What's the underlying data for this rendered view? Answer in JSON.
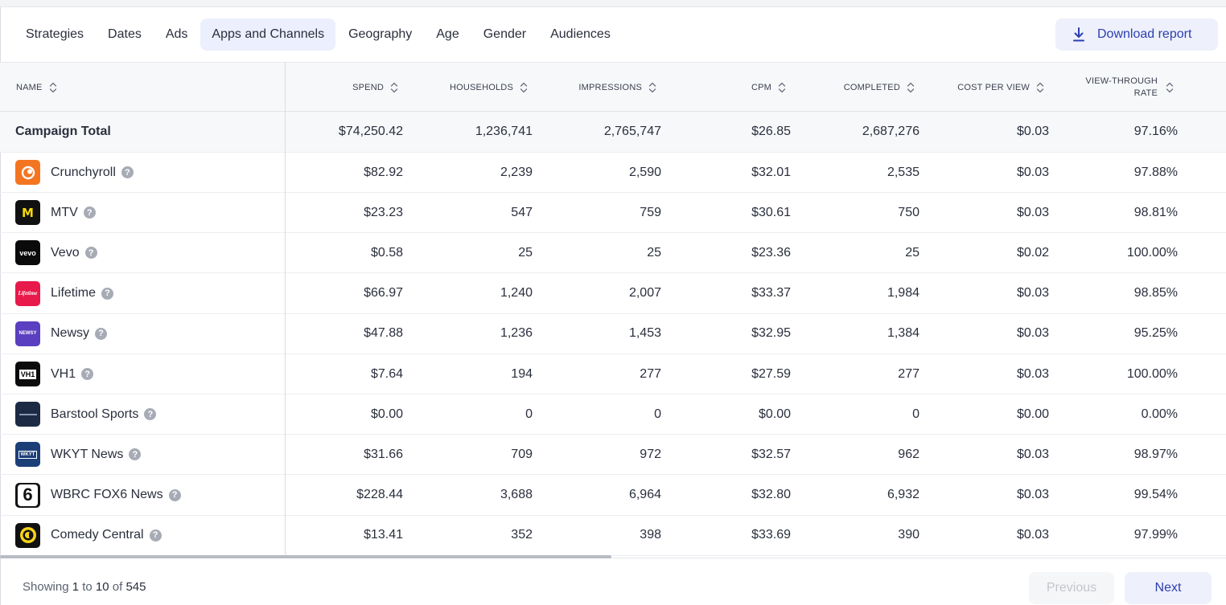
{
  "tabs": [
    "Strategies",
    "Dates",
    "Ads",
    "Apps and Channels",
    "Geography",
    "Age",
    "Gender",
    "Audiences"
  ],
  "active_tab": "Apps and Channels",
  "download_label": "Download report",
  "columns": {
    "name": "NAME",
    "spend": "SPEND",
    "households": "HOUSEHOLDS",
    "impressions": "IMPRESSIONS",
    "cpm": "CPM",
    "completed": "COMPLETED",
    "cost_per_view": "COST PER VIEW",
    "vtr_line1": "VIEW-THROUGH",
    "vtr_line2": "RATE"
  },
  "total": {
    "name": "Campaign Total",
    "spend": "$74,250.42",
    "households": "1,236,741",
    "impressions": "2,765,747",
    "cpm": "$26.85",
    "completed": "2,687,276",
    "cost_per_view": "$0.03",
    "vtr": "97.16%"
  },
  "rows": [
    {
      "name": "Crunchyroll",
      "logo": "crunchyroll-logo",
      "color": "#f47521",
      "spend": "$82.92",
      "households": "2,239",
      "impressions": "2,590",
      "cpm": "$32.01",
      "completed": "2,535",
      "cost_per_view": "$0.03",
      "vtr": "97.88%"
    },
    {
      "name": "MTV",
      "logo": "mtv-logo",
      "color": "#111111",
      "spend": "$23.23",
      "households": "547",
      "impressions": "759",
      "cpm": "$30.61",
      "completed": "750",
      "cost_per_view": "$0.03",
      "vtr": "98.81%"
    },
    {
      "name": "Vevo",
      "logo": "vevo-logo",
      "color": "#0a0a0a",
      "spend": "$0.58",
      "households": "25",
      "impressions": "25",
      "cpm": "$23.36",
      "completed": "25",
      "cost_per_view": "$0.02",
      "vtr": "100.00%"
    },
    {
      "name": "Lifetime",
      "logo": "lifetime-logo",
      "color": "#e8194b",
      "spend": "$66.97",
      "households": "1,240",
      "impressions": "2,007",
      "cpm": "$33.37",
      "completed": "1,984",
      "cost_per_view": "$0.03",
      "vtr": "98.85%"
    },
    {
      "name": "Newsy",
      "logo": "newsy-logo",
      "color": "#5a3fc0",
      "spend": "$47.88",
      "households": "1,236",
      "impressions": "1,453",
      "cpm": "$32.95",
      "completed": "1,384",
      "cost_per_view": "$0.03",
      "vtr": "95.25%"
    },
    {
      "name": "VH1",
      "logo": "vh1-logo",
      "color": "#0b0b0b",
      "spend": "$7.64",
      "households": "194",
      "impressions": "277",
      "cpm": "$27.59",
      "completed": "277",
      "cost_per_view": "$0.03",
      "vtr": "100.00%"
    },
    {
      "name": "Barstool Sports",
      "logo": "barstool-sports-logo",
      "color": "#1d2a44",
      "spend": "$0.00",
      "households": "0",
      "impressions": "0",
      "cpm": "$0.00",
      "completed": "0",
      "cost_per_view": "$0.00",
      "vtr": "0.00%"
    },
    {
      "name": "WKYT News",
      "logo": "wkyt-logo",
      "color": "#1c3f78",
      "spend": "$31.66",
      "households": "709",
      "impressions": "972",
      "cpm": "$32.57",
      "completed": "962",
      "cost_per_view": "$0.03",
      "vtr": "98.97%"
    },
    {
      "name": "WBRC FOX6 News",
      "logo": "fox6-logo",
      "color": "#141414",
      "spend": "$228.44",
      "households": "3,688",
      "impressions": "6,964",
      "cpm": "$32.80",
      "completed": "6,932",
      "cost_per_view": "$0.03",
      "vtr": "99.54%"
    },
    {
      "name": "Comedy Central",
      "logo": "comedy-central-logo",
      "color": "#111111",
      "spend": "$13.41",
      "households": "352",
      "impressions": "398",
      "cpm": "$33.69",
      "completed": "390",
      "cost_per_view": "$0.03",
      "vtr": "97.99%"
    }
  ],
  "pagination": {
    "showing_prefix": "Showing",
    "from": "1",
    "to_word": "to",
    "to": "10",
    "of_word": "of",
    "total": "545",
    "previous_label": "Previous",
    "next_label": "Next"
  },
  "colors": {
    "accent": "#2c3fb0",
    "active_tab_bg": "#eceffd",
    "header_bg": "#f7f8fa"
  }
}
